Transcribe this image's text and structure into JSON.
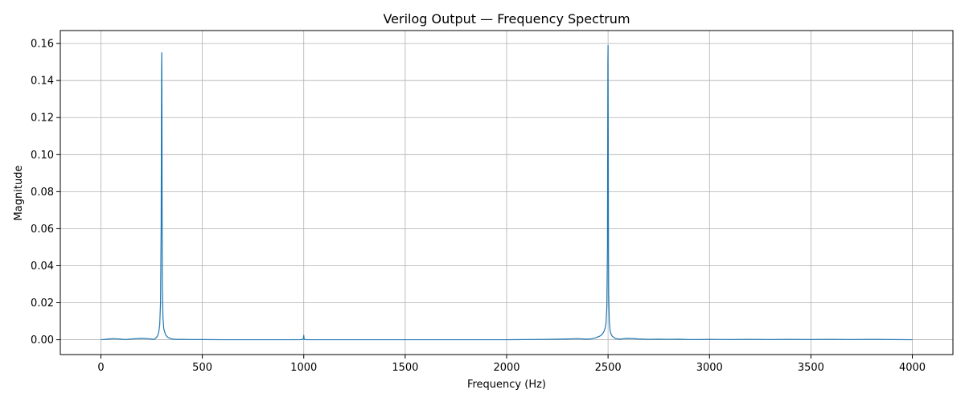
{
  "chart_data": {
    "type": "line",
    "title": "Verilog Output — Frequency Spectrum",
    "xlabel": "Frequency (Hz)",
    "ylabel": "Magnitude",
    "xlim": [
      -200,
      4200
    ],
    "ylim": [
      -0.008,
      0.167
    ],
    "xticks": [
      0,
      500,
      1000,
      1500,
      2000,
      2500,
      3000,
      3500,
      4000
    ],
    "yticks": [
      0.0,
      0.02,
      0.04,
      0.06,
      0.08,
      0.1,
      0.12,
      0.14,
      0.16
    ],
    "xtick_labels": [
      "0",
      "500",
      "1000",
      "1500",
      "2000",
      "2500",
      "3000",
      "3500",
      "4000"
    ],
    "ytick_labels": [
      "0.00",
      "0.02",
      "0.04",
      "0.06",
      "0.08",
      "0.10",
      "0.12",
      "0.14",
      "0.16"
    ],
    "grid": true,
    "line_color": "#1f77b4",
    "grid_color": "#b0b0b0",
    "series": [
      {
        "x": [
          0,
          20,
          40,
          60,
          80,
          100,
          120,
          140,
          160,
          180,
          200,
          220,
          240,
          260,
          270,
          280,
          285,
          290,
          294,
          297,
          298,
          299,
          300,
          301,
          302,
          303,
          306,
          310,
          315,
          320,
          330,
          340,
          350,
          360,
          380,
          400,
          450,
          500,
          600,
          700,
          800,
          900,
          980,
          995,
          998,
          999,
          1000,
          1001,
          1002,
          1005,
          1020,
          1100,
          1200,
          1400,
          1600,
          1800,
          2000,
          2100,
          2200,
          2250,
          2300,
          2350,
          2380,
          2400,
          2420,
          2440,
          2460,
          2470,
          2480,
          2485,
          2490,
          2494,
          2497,
          2498,
          2499,
          2500,
          2501,
          2502,
          2503,
          2506,
          2510,
          2515,
          2520,
          2530,
          2540,
          2560,
          2580,
          2600,
          2620,
          2650,
          2700,
          2750,
          2800,
          2850,
          2900,
          2950,
          3000,
          3100,
          3200,
          3300,
          3400,
          3500,
          3600,
          3700,
          3800,
          3900,
          4000
        ],
        "y": [
          0.0,
          0.0002,
          0.0004,
          0.0006,
          0.0005,
          0.0003,
          0.0001,
          0.0003,
          0.0005,
          0.0007,
          0.0008,
          0.0007,
          0.0005,
          0.0002,
          0.0008,
          0.0022,
          0.004,
          0.008,
          0.02,
          0.06,
          0.1,
          0.145,
          0.155,
          0.12,
          0.06,
          0.03,
          0.012,
          0.006,
          0.004,
          0.0025,
          0.0013,
          0.0008,
          0.0005,
          0.0003,
          0.0002,
          0.0002,
          0.0001,
          0.0001,
          0.0,
          0.0,
          0.0,
          0.0,
          0.0,
          0.0002,
          0.0005,
          0.0015,
          0.0024,
          0.0012,
          0.0004,
          0.0001,
          0.0,
          0.0,
          0.0,
          0.0,
          0.0,
          0.0,
          0.0,
          0.0001,
          0.0002,
          0.0003,
          0.0004,
          0.0006,
          0.0004,
          0.0003,
          0.0006,
          0.0011,
          0.002,
          0.0028,
          0.0045,
          0.006,
          0.009,
          0.018,
          0.05,
          0.1,
          0.15,
          0.159,
          0.11,
          0.05,
          0.025,
          0.01,
          0.005,
          0.003,
          0.002,
          0.0011,
          0.0006,
          0.0003,
          0.0007,
          0.0008,
          0.0007,
          0.0004,
          0.0002,
          0.0003,
          0.0002,
          0.0003,
          0.0001,
          0.0001,
          0.0002,
          0.0001,
          0.0002,
          0.0001,
          0.0002,
          0.0001,
          0.0002,
          0.0001,
          0.0002,
          0.0001,
          0.0
        ]
      }
    ]
  }
}
